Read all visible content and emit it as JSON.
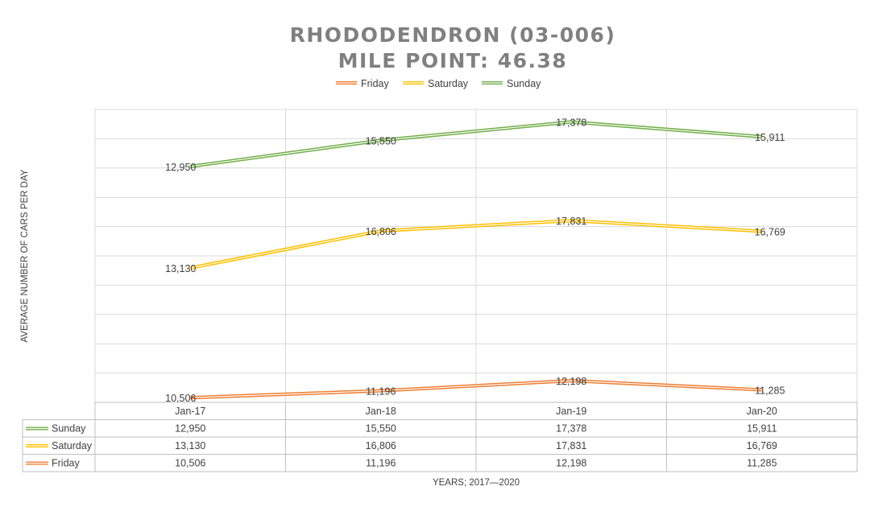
{
  "chart_data": {
    "type": "line",
    "title": "RHODODENDRON (03-006)",
    "subtitle": "MILE POINT: 46.38",
    "xlabel": "YEARS; 2017—2020",
    "ylabel": "AVERAGE NUMBER OF CARS PER DAY",
    "categories": [
      "Jan-17",
      "Jan-18",
      "Jan-19",
      "Jan-20"
    ],
    "grid": true,
    "legend_position": "top",
    "data_table": true,
    "series": [
      {
        "name": "Friday",
        "color": "#ED7D31",
        "values": [
          10506,
          11196,
          12198,
          11285
        ],
        "labels": [
          "10,506",
          "11,196",
          "12,198",
          "11,285"
        ]
      },
      {
        "name": "Saturday",
        "color": "#FFC000",
        "values": [
          13130,
          16806,
          17831,
          16769
        ],
        "labels": [
          "13,130",
          "16,806",
          "17,831",
          "16,769"
        ]
      },
      {
        "name": "Sunday",
        "color": "#70AD47",
        "values": [
          12950,
          15550,
          17378,
          15911
        ],
        "labels": [
          "12,950",
          "15,550",
          "17,378",
          "15,911"
        ]
      }
    ]
  }
}
